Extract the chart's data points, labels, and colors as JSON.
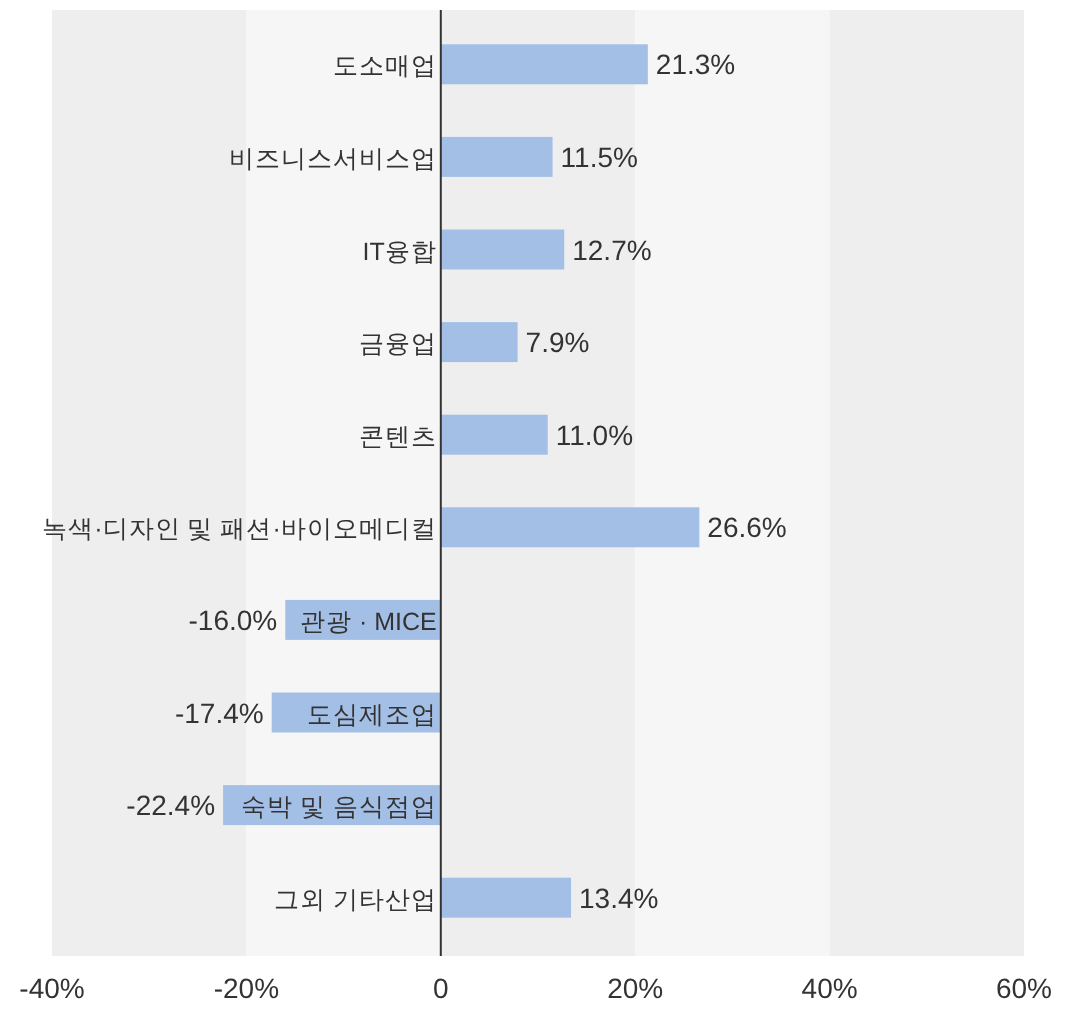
{
  "chart_data": {
    "type": "bar",
    "orientation": "horizontal",
    "categories": [
      "도소매업",
      "비즈니스서비스업",
      "IT융합",
      "금융업",
      "콘텐츠",
      "녹색·디자인 및 패션·바이오메디컬",
      "관광 · MICE",
      "도심제조업",
      "숙박 및 음식점업",
      "그외 기타산업"
    ],
    "values": [
      21.3,
      11.5,
      12.7,
      7.9,
      11.0,
      26.6,
      -16.0,
      -17.4,
      -22.4,
      13.4
    ],
    "value_labels": [
      "21.3%",
      "11.5%",
      "12.7%",
      "7.9%",
      "11.0%",
      "26.6%",
      "-16.0%",
      "-17.4%",
      "-22.4%",
      "13.4%"
    ],
    "color": "#a4bfe6",
    "xlim": [
      -40,
      60
    ],
    "xticks": [
      {
        "value": -40,
        "label": "-40%"
      },
      {
        "value": -20,
        "label": "-20%"
      },
      0,
      {
        "value": 20,
        "label": "20%"
      },
      {
        "value": 40,
        "label": "40%"
      },
      {
        "value": 60,
        "label": "60%"
      }
    ],
    "bands": [
      {
        "axis": "x",
        "from": -40,
        "to": -20,
        "color": "#eeeeee"
      },
      {
        "axis": "x",
        "from": -20,
        "to": 0,
        "color": "#f6f6f6"
      },
      {
        "axis": "x",
        "from": 0,
        "to": 20,
        "color": "#eeeeee"
      },
      {
        "axis": "x",
        "from": 20,
        "to": 40,
        "color": "#f6f6f6"
      },
      {
        "axis": "x",
        "from": 40,
        "to": 60,
        "color": "#eeeeee"
      }
    ],
    "grid": false
  }
}
